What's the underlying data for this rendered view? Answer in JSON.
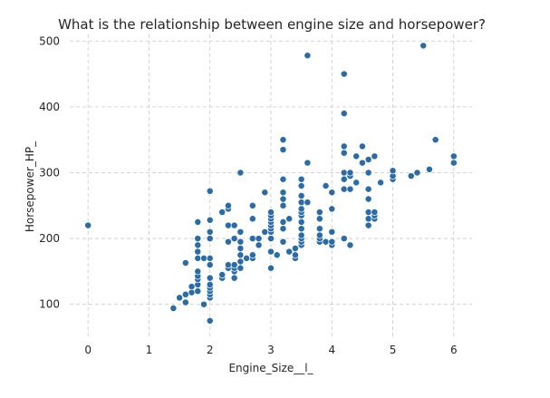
{
  "chart_data": {
    "type": "scatter",
    "title": "What is the relationship between engine size and horsepower?",
    "xlabel": "Engine_Size__l_",
    "ylabel": "Horsepower_HP_",
    "xlim": [
      -0.3,
      6.3
    ],
    "ylim": [
      50,
      510
    ],
    "xticks": [
      0,
      1,
      2,
      3,
      4,
      5,
      6
    ],
    "yticks": [
      100,
      200,
      300,
      400,
      500
    ],
    "grid": true,
    "grid_style": "dashed",
    "point_color": "#2a6ca8",
    "points": [
      [
        0,
        220
      ],
      [
        1.4,
        94
      ],
      [
        1.5,
        110
      ],
      [
        1.6,
        103
      ],
      [
        1.6,
        115
      ],
      [
        1.6,
        163
      ],
      [
        1.7,
        118
      ],
      [
        1.7,
        127
      ],
      [
        1.8,
        120
      ],
      [
        1.8,
        130
      ],
      [
        1.8,
        138
      ],
      [
        1.8,
        143
      ],
      [
        1.8,
        150
      ],
      [
        1.8,
        170
      ],
      [
        1.8,
        180
      ],
      [
        1.8,
        190
      ],
      [
        1.8,
        200
      ],
      [
        1.8,
        225
      ],
      [
        1.9,
        100
      ],
      [
        1.9,
        170
      ],
      [
        2.0,
        75
      ],
      [
        2.0,
        110
      ],
      [
        2.0,
        115
      ],
      [
        2.0,
        120
      ],
      [
        2.0,
        125
      ],
      [
        2.0,
        130
      ],
      [
        2.0,
        140
      ],
      [
        2.0,
        160
      ],
      [
        2.0,
        170
      ],
      [
        2.0,
        200
      ],
      [
        2.0,
        210
      ],
      [
        2.0,
        228
      ],
      [
        2.0,
        272
      ],
      [
        2.2,
        140
      ],
      [
        2.2,
        145
      ],
      [
        2.2,
        240
      ],
      [
        2.3,
        155
      ],
      [
        2.3,
        160
      ],
      [
        2.3,
        195
      ],
      [
        2.3,
        220
      ],
      [
        2.3,
        245
      ],
      [
        2.3,
        250
      ],
      [
        2.4,
        140
      ],
      [
        2.4,
        150
      ],
      [
        2.4,
        155
      ],
      [
        2.4,
        160
      ],
      [
        2.4,
        200
      ],
      [
        2.4,
        220
      ],
      [
        2.5,
        155
      ],
      [
        2.5,
        165
      ],
      [
        2.5,
        175
      ],
      [
        2.5,
        185
      ],
      [
        2.5,
        195
      ],
      [
        2.5,
        210
      ],
      [
        2.5,
        300
      ],
      [
        2.6,
        170
      ],
      [
        2.7,
        170
      ],
      [
        2.7,
        175
      ],
      [
        2.7,
        200
      ],
      [
        2.7,
        230
      ],
      [
        2.7,
        250
      ],
      [
        2.8,
        190
      ],
      [
        2.8,
        200
      ],
      [
        2.9,
        210
      ],
      [
        2.9,
        270
      ],
      [
        3.0,
        155
      ],
      [
        3.0,
        180
      ],
      [
        3.0,
        200
      ],
      [
        3.0,
        210
      ],
      [
        3.0,
        215
      ],
      [
        3.0,
        220
      ],
      [
        3.0,
        225
      ],
      [
        3.0,
        230
      ],
      [
        3.0,
        235
      ],
      [
        3.0,
        240
      ],
      [
        3.1,
        175
      ],
      [
        3.2,
        195
      ],
      [
        3.2,
        215
      ],
      [
        3.2,
        225
      ],
      [
        3.2,
        250
      ],
      [
        3.2,
        260
      ],
      [
        3.2,
        270
      ],
      [
        3.2,
        290
      ],
      [
        3.2,
        335
      ],
      [
        3.2,
        350
      ],
      [
        3.3,
        180
      ],
      [
        3.3,
        230
      ],
      [
        3.4,
        170
      ],
      [
        3.4,
        175
      ],
      [
        3.4,
        185
      ],
      [
        3.5,
        190
      ],
      [
        3.5,
        195
      ],
      [
        3.5,
        200
      ],
      [
        3.5,
        205
      ],
      [
        3.5,
        215
      ],
      [
        3.5,
        225
      ],
      [
        3.5,
        235
      ],
      [
        3.5,
        240
      ],
      [
        3.5,
        245
      ],
      [
        3.5,
        255
      ],
      [
        3.5,
        265
      ],
      [
        3.5,
        280
      ],
      [
        3.5,
        290
      ],
      [
        3.6,
        255
      ],
      [
        3.6,
        315
      ],
      [
        3.6,
        478
      ],
      [
        3.8,
        195
      ],
      [
        3.8,
        200
      ],
      [
        3.8,
        205
      ],
      [
        3.8,
        215
      ],
      [
        3.8,
        230
      ],
      [
        3.8,
        240
      ],
      [
        3.9,
        195
      ],
      [
        3.9,
        280
      ],
      [
        4.0,
        190
      ],
      [
        4.0,
        195
      ],
      [
        4.0,
        210
      ],
      [
        4.0,
        245
      ],
      [
        4.0,
        270
      ],
      [
        4.2,
        200
      ],
      [
        4.2,
        275
      ],
      [
        4.2,
        290
      ],
      [
        4.2,
        300
      ],
      [
        4.2,
        330
      ],
      [
        4.2,
        340
      ],
      [
        4.2,
        390
      ],
      [
        4.2,
        450
      ],
      [
        4.3,
        190
      ],
      [
        4.3,
        275
      ],
      [
        4.3,
        295
      ],
      [
        4.3,
        300
      ],
      [
        4.4,
        285
      ],
      [
        4.4,
        325
      ],
      [
        4.5,
        315
      ],
      [
        4.5,
        340
      ],
      [
        4.6,
        220
      ],
      [
        4.6,
        230
      ],
      [
        4.6,
        240
      ],
      [
        4.6,
        260
      ],
      [
        4.6,
        275
      ],
      [
        4.6,
        300
      ],
      [
        4.6,
        320
      ],
      [
        4.7,
        230
      ],
      [
        4.7,
        235
      ],
      [
        4.7,
        240
      ],
      [
        4.7,
        325
      ],
      [
        4.8,
        285
      ],
      [
        5.0,
        290
      ],
      [
        5.0,
        295
      ],
      [
        5.0,
        303
      ],
      [
        5.3,
        295
      ],
      [
        5.4,
        300
      ],
      [
        5.5,
        493
      ],
      [
        5.6,
        305
      ],
      [
        5.7,
        350
      ],
      [
        6.0,
        315
      ],
      [
        6.0,
        325
      ]
    ]
  }
}
